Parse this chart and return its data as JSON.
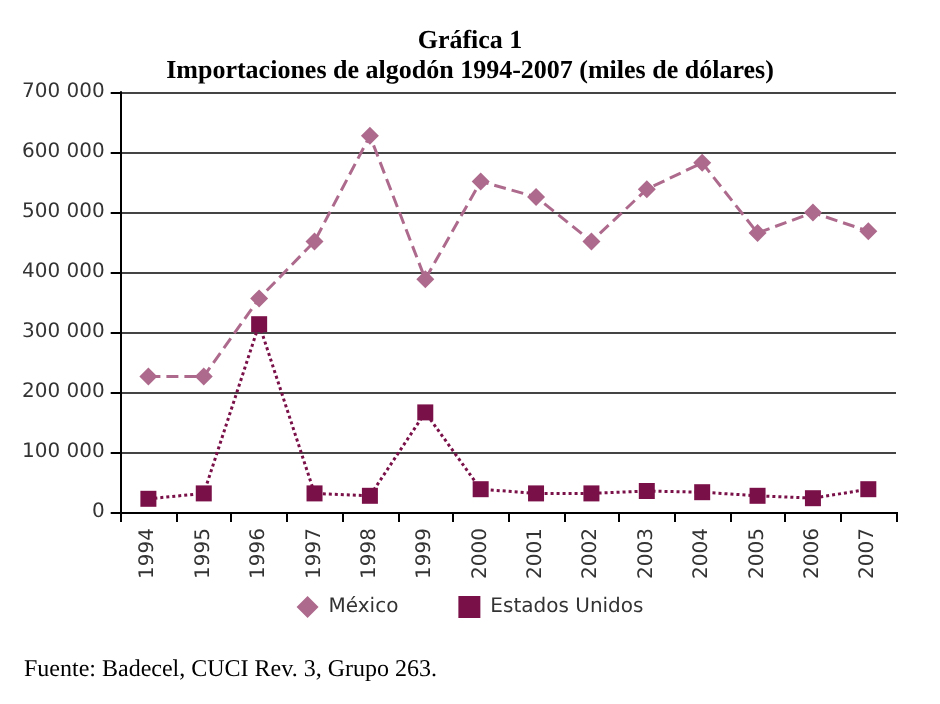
{
  "chart_data": {
    "type": "line",
    "title": "Gráfica 1",
    "subtitle": "Importaciones de algodón 1994-2007 (miles de dólares)",
    "categories": [
      "1994",
      "1995",
      "1996",
      "1997",
      "1998",
      "1999",
      "2000",
      "2001",
      "2002",
      "2003",
      "2004",
      "2005",
      "2006",
      "2007"
    ],
    "series": [
      {
        "name": "México",
        "color": "#ad6a8c",
        "marker": "diamond",
        "line_style": "dashed",
        "values": [
          226000,
          226000,
          356000,
          451000,
          627000,
          388000,
          551000,
          525000,
          451000,
          538000,
          582000,
          465000,
          499000,
          468000
        ]
      },
      {
        "name": "Estados Unidos",
        "color": "#7a1048",
        "marker": "square",
        "line_style": "dotted",
        "values": [
          22000,
          31000,
          313000,
          31000,
          27000,
          166000,
          38000,
          31000,
          31000,
          35000,
          33000,
          27000,
          23000,
          38000
        ]
      }
    ],
    "ylim": [
      0,
      700000
    ],
    "yticks": [
      {
        "value": 0,
        "label": "0"
      },
      {
        "value": 100000,
        "label": "100 000"
      },
      {
        "value": 200000,
        "label": "200 000"
      },
      {
        "value": 300000,
        "label": "300 000"
      },
      {
        "value": 400000,
        "label": "400 000"
      },
      {
        "value": 500000,
        "label": "500 000"
      },
      {
        "value": 600000,
        "label": "600 000"
      },
      {
        "value": 700000,
        "label": "700 000"
      }
    ],
    "grid": "y",
    "legend": "bottom",
    "annotations": [
      "Fuente: Badecel, CUCI Rev. 3, Grupo 263."
    ]
  }
}
